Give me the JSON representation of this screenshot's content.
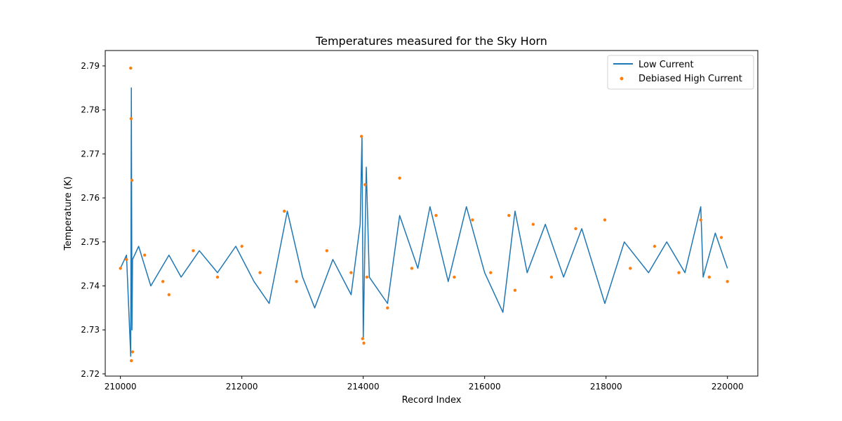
{
  "chart_data": {
    "type": "line",
    "title": "Temperatures measured for the Sky Horn",
    "xlabel": "Record Index",
    "ylabel": "Temperature (K)",
    "xlim": [
      209750,
      220500
    ],
    "ylim": [
      2.7195,
      2.7935
    ],
    "xticks": [
      210000,
      212000,
      214000,
      216000,
      218000,
      220000
    ],
    "xtick_labels": [
      "210000",
      "212000",
      "214000",
      "216000",
      "218000",
      "220000"
    ],
    "yticks": [
      2.72,
      2.73,
      2.74,
      2.75,
      2.76,
      2.77,
      2.78,
      2.79
    ],
    "ytick_labels": [
      "2.72",
      "2.73",
      "2.74",
      "2.75",
      "2.76",
      "2.77",
      "2.78",
      "2.79"
    ],
    "legend_position": "top-right",
    "series": [
      {
        "name": "Low Current",
        "kind": "line",
        "color": "#1f77b4",
        "x": [
          210000,
          210100,
          210170,
          210180,
          210190,
          210200,
          210300,
          210500,
          210800,
          211000,
          211300,
          211600,
          211900,
          212200,
          212450,
          212750,
          213000,
          213200,
          213500,
          213800,
          213950,
          213980,
          214000,
          214050,
          214100,
          214400,
          214600,
          214900,
          215100,
          215400,
          215700,
          216000,
          216300,
          216500,
          216700,
          217000,
          217300,
          217600,
          217980,
          218300,
          218700,
          219000,
          219300,
          219560,
          219600,
          219800,
          220000
        ],
        "y": [
          2.744,
          2.747,
          2.724,
          2.785,
          2.73,
          2.746,
          2.749,
          2.74,
          2.747,
          2.742,
          2.748,
          2.743,
          2.749,
          2.741,
          2.736,
          2.757,
          2.742,
          2.735,
          2.746,
          2.738,
          2.754,
          2.774,
          2.728,
          2.767,
          2.742,
          2.736,
          2.756,
          2.744,
          2.758,
          2.741,
          2.758,
          2.743,
          2.734,
          2.757,
          2.743,
          2.754,
          2.742,
          2.753,
          2.736,
          2.75,
          2.743,
          2.75,
          2.743,
          2.758,
          2.742,
          2.752,
          2.744
        ]
      },
      {
        "name": "Debiased High Current",
        "kind": "scatter",
        "color": "#ff7f0e",
        "x": [
          210000,
          210100,
          210170,
          210175,
          210180,
          210190,
          210200,
          210400,
          210700,
          210800,
          211200,
          211600,
          212000,
          212300,
          212700,
          212900,
          213400,
          213800,
          213970,
          213990,
          214010,
          214030,
          214060,
          214400,
          214600,
          214800,
          215200,
          215500,
          215800,
          216100,
          216400,
          216500,
          216800,
          217100,
          217500,
          217980,
          218400,
          218800,
          219200,
          219560,
          219700,
          219900,
          220000
        ],
        "y": [
          2.744,
          2.746,
          2.7895,
          2.778,
          2.723,
          2.764,
          2.725,
          2.747,
          2.741,
          2.738,
          2.748,
          2.742,
          2.749,
          2.743,
          2.757,
          2.741,
          2.748,
          2.743,
          2.774,
          2.728,
          2.727,
          2.763,
          2.742,
          2.735,
          2.7645,
          2.744,
          2.756,
          2.742,
          2.755,
          2.743,
          2.756,
          2.739,
          2.754,
          2.742,
          2.753,
          2.755,
          2.744,
          2.749,
          2.743,
          2.755,
          2.742,
          2.751,
          2.741
        ]
      }
    ]
  }
}
